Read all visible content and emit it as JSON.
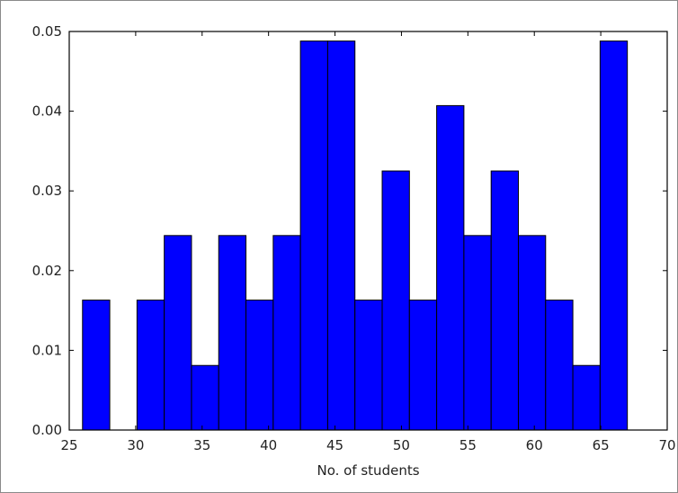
{
  "chart_data": {
    "type": "bar",
    "xlabel": "No. of students",
    "ylabel": "",
    "xlim": [
      25,
      70
    ],
    "ylim": [
      0,
      0.05
    ],
    "xticks": [
      "25",
      "30",
      "35",
      "40",
      "45",
      "50",
      "55",
      "60",
      "65",
      "70"
    ],
    "yticks": [
      "0.00",
      "0.01",
      "0.02",
      "0.03",
      "0.04",
      "0.05"
    ],
    "bins": [
      {
        "start": 26.0,
        "end": 28.05,
        "value": 0.0163
      },
      {
        "start": 28.05,
        "end": 30.1,
        "value": 0.0
      },
      {
        "start": 30.1,
        "end": 32.15,
        "value": 0.0163
      },
      {
        "start": 32.15,
        "end": 34.2,
        "value": 0.0244
      },
      {
        "start": 34.2,
        "end": 36.25,
        "value": 0.0081
      },
      {
        "start": 36.25,
        "end": 38.3,
        "value": 0.0244
      },
      {
        "start": 38.3,
        "end": 40.35,
        "value": 0.0163
      },
      {
        "start": 40.35,
        "end": 42.4,
        "value": 0.0244
      },
      {
        "start": 42.4,
        "end": 44.45,
        "value": 0.0488
      },
      {
        "start": 44.45,
        "end": 46.5,
        "value": 0.0488
      },
      {
        "start": 46.5,
        "end": 48.55,
        "value": 0.0163
      },
      {
        "start": 48.55,
        "end": 50.6,
        "value": 0.0325
      },
      {
        "start": 50.6,
        "end": 52.65,
        "value": 0.0163
      },
      {
        "start": 52.65,
        "end": 54.7,
        "value": 0.0407
      },
      {
        "start": 54.7,
        "end": 56.75,
        "value": 0.0244
      },
      {
        "start": 56.75,
        "end": 58.8,
        "value": 0.0325
      },
      {
        "start": 58.8,
        "end": 60.85,
        "value": 0.0244
      },
      {
        "start": 60.85,
        "end": 62.9,
        "value": 0.0163
      },
      {
        "start": 62.9,
        "end": 64.95,
        "value": 0.0081
      },
      {
        "start": 64.95,
        "end": 67.0,
        "value": 0.0488
      }
    ],
    "bar_color": "#0000ff",
    "edge_color": "#000000",
    "grid": false
  }
}
